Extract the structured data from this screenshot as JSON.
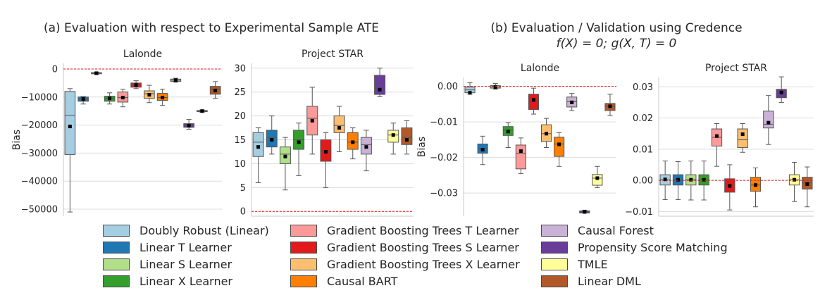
{
  "titles": {
    "left": "(a) Evaluation with respect to Experimental Sample ATE",
    "right": "(b) Evaluation / Validation using Credence",
    "right_sub": "f(X) = 0; g(X, T) = 0"
  },
  "legend": [
    {
      "label": "Doubly Robust (Linear)",
      "color": "#a6cee3"
    },
    {
      "label": "Linear T Learner",
      "color": "#1f78b4"
    },
    {
      "label": "Linear S Learner",
      "color": "#b2df8a"
    },
    {
      "label": "Linear X Learner",
      "color": "#33a02c"
    },
    {
      "label": "Gradient Boosting Trees T Learner",
      "color": "#fb9a99"
    },
    {
      "label": "Gradient Boosting Trees S Learner",
      "color": "#e31a1c"
    },
    {
      "label": "Gradient Boosting Trees X Learner",
      "color": "#fdbf6f"
    },
    {
      "label": "Causal BART",
      "color": "#ff7f00"
    },
    {
      "label": "Causal Forest",
      "color": "#cab2d6"
    },
    {
      "label": "Propensity Score Matching",
      "color": "#6a3d9a"
    },
    {
      "label": "TMLE",
      "color": "#ffff99"
    },
    {
      "label": "Linear DML",
      "color": "#b15928"
    }
  ],
  "chart_data": [
    {
      "type": "box",
      "title": "Lalonde",
      "ylabel": "Bias",
      "ylim": [
        -52500,
        2000
      ],
      "yticks": [
        0,
        -10000,
        -20000,
        -30000,
        -40000,
        -50000
      ],
      "ytick_labels": [
        "0",
        "−10000",
        "−20000",
        "−30000",
        "−40000",
        "−50000"
      ],
      "reference_line": 0,
      "boxes": [
        {
          "whislo": -51000,
          "q1": -30500,
          "med": -16500,
          "q3": -8000,
          "whishi": -7000,
          "mean": -20500
        },
        {
          "whislo": -12500,
          "q1": -11500,
          "med": -10800,
          "q3": -10000,
          "whishi": -9800,
          "mean": -10700
        },
        {
          "whislo": -1900,
          "q1": -1700,
          "med": -1500,
          "q3": -1300,
          "whishi": -1100,
          "mean": -1500
        },
        {
          "whislo": -12500,
          "q1": -11500,
          "med": -10500,
          "q3": -9700,
          "whishi": -8500,
          "mean": -10500
        },
        {
          "whislo": -13500,
          "q1": -11800,
          "med": -10200,
          "q3": -8200,
          "whishi": -7200,
          "mean": -10200
        },
        {
          "whislo": -7000,
          "q1": -6500,
          "med": -5800,
          "q3": -5000,
          "whishi": -4200,
          "mean": -5700
        },
        {
          "whislo": -12000,
          "q1": -10500,
          "med": -8800,
          "q3": -7800,
          "whishi": -5800,
          "mean": -9200
        },
        {
          "whislo": -13000,
          "q1": -11200,
          "med": -10200,
          "q3": -8700,
          "whishi": -7200,
          "mean": -10200
        },
        {
          "whislo": -4700,
          "q1": -4400,
          "med": -4000,
          "q3": -3600,
          "whishi": -3300,
          "mean": -4000
        },
        {
          "whislo": -21500,
          "q1": -20800,
          "med": -20200,
          "q3": -19500,
          "whishi": -18000,
          "mean": -20200
        },
        {
          "whislo": -15400,
          "q1": -15200,
          "med": -15000,
          "q3": -14800,
          "whishi": -14600,
          "mean": -15000
        },
        {
          "whislo": -10500,
          "q1": -9000,
          "med": -7200,
          "q3": -6200,
          "whishi": -4500,
          "mean": -7700
        }
      ]
    },
    {
      "type": "box",
      "title": "Project STAR",
      "ylabel": "",
      "ylim": [
        -1,
        31
      ],
      "yticks": [
        0,
        5,
        10,
        15,
        20,
        25,
        30
      ],
      "ytick_labels": [
        "0",
        "5",
        "10",
        "15",
        "20",
        "25",
        "30"
      ],
      "reference_line": 0,
      "boxes": [
        {
          "whislo": 6,
          "q1": 11.5,
          "med": 14.5,
          "q3": 16.5,
          "whishi": 17.5,
          "mean": 13.5
        },
        {
          "whislo": 12,
          "q1": 13.5,
          "med": 15.5,
          "q3": 17,
          "whishi": 20,
          "mean": 15
        },
        {
          "whislo": 4.5,
          "q1": 10,
          "med": 12,
          "q3": 13.5,
          "whishi": 15.5,
          "mean": 11.5
        },
        {
          "whislo": 7.5,
          "q1": 13,
          "med": 15,
          "q3": 17,
          "whishi": 18.5,
          "mean": 14.5
        },
        {
          "whislo": 12,
          "q1": 16,
          "med": 19.5,
          "q3": 22,
          "whishi": 26,
          "mean": 19
        },
        {
          "whislo": 5,
          "q1": 10.5,
          "med": 12.5,
          "q3": 15,
          "whishi": 16.5,
          "mean": 12.5
        },
        {
          "whislo": 12.5,
          "q1": 16.5,
          "med": 18,
          "q3": 20,
          "whishi": 22,
          "mean": 17.5
        },
        {
          "whislo": 11,
          "q1": 13,
          "med": 14.5,
          "q3": 16.5,
          "whishi": 17.5,
          "mean": 14.5
        },
        {
          "whislo": 8.5,
          "q1": 12,
          "med": 14,
          "q3": 15.5,
          "whishi": 17,
          "mean": 13.5
        },
        {
          "whislo": 24,
          "q1": 24.5,
          "med": 26.5,
          "q3": 28.5,
          "whishi": 30,
          "mean": 25.5
        },
        {
          "whislo": 12,
          "q1": 14.5,
          "med": 16,
          "q3": 17,
          "whishi": 18.5,
          "mean": 16
        },
        {
          "whislo": 12,
          "q1": 14,
          "med": 15.5,
          "q3": 17.5,
          "whishi": 19,
          "mean": 15
        }
      ]
    },
    {
      "type": "box",
      "title": "Lalonde",
      "ylabel": "Bias",
      "ylim": [
        -0.0365,
        0.0025
      ],
      "yticks": [
        0,
        -0.01,
        -0.02,
        -0.03
      ],
      "ytick_labels": [
        "0.00",
        "−0.01",
        "−0.02",
        "−0.03"
      ],
      "reference_line": 0,
      "boxes": [
        {
          "whislo": -0.0022,
          "q1": -0.0018,
          "med": -0.001,
          "q3": -0.0002,
          "whishi": 0.001,
          "mean": -0.0018
        },
        {
          "whislo": -0.022,
          "q1": -0.0188,
          "med": -0.0175,
          "q3": -0.0162,
          "whishi": -0.014,
          "mean": -0.0178
        },
        {
          "whislo": -0.0008,
          "q1": -0.0005,
          "med": -0.0002,
          "q3": 0.0002,
          "whishi": 0.0008,
          "mean": -0.0002
        },
        {
          "whislo": -0.0172,
          "q1": -0.0138,
          "med": -0.0123,
          "q3": -0.0113,
          "whishi": -0.0102,
          "mean": -0.0127
        },
        {
          "whislo": -0.0245,
          "q1": -0.0232,
          "med": -0.0188,
          "q3": -0.0165,
          "whishi": -0.0145,
          "mean": -0.0182
        },
        {
          "whislo": -0.0078,
          "q1": -0.0065,
          "med": -0.0042,
          "q3": -0.0022,
          "whishi": -0.0005,
          "mean": -0.0038
        },
        {
          "whislo": -0.0172,
          "q1": -0.0155,
          "med": -0.0133,
          "q3": -0.0108,
          "whishi": -0.009,
          "mean": -0.0133
        },
        {
          "whislo": -0.0225,
          "q1": -0.0197,
          "med": -0.0162,
          "q3": -0.0143,
          "whishi": -0.013,
          "mean": -0.0163
        },
        {
          "whislo": -0.0068,
          "q1": -0.0058,
          "med": -0.0043,
          "q3": -0.003,
          "whishi": -0.002,
          "mean": -0.0045
        },
        {
          "whislo": -0.0356,
          "q1": -0.0356,
          "med": -0.0353,
          "q3": -0.035,
          "whishi": -0.0348,
          "mean": -0.0353
        },
        {
          "whislo": -0.0285,
          "q1": -0.0278,
          "med": -0.0258,
          "q3": -0.0248,
          "whishi": -0.0225,
          "mean": -0.0258
        },
        {
          "whislo": -0.0082,
          "q1": -0.0068,
          "med": -0.0056,
          "q3": -0.0048,
          "whishi": -0.0022,
          "mean": -0.0056
        }
      ]
    },
    {
      "type": "box",
      "title": "Project STAR",
      "ylabel": "",
      "ylim": [
        -0.0115,
        0.033
      ],
      "yticks": [
        -0.01,
        0,
        0.01,
        0.02,
        0.03
      ],
      "ytick_labels": [
        "−0.01",
        "0.00",
        "0.01",
        "0.02",
        "0.03"
      ],
      "reference_line": 0,
      "boxes": [
        {
          "whislo": -0.0062,
          "q1": -0.0015,
          "med": 0.0002,
          "q3": 0.0018,
          "whishi": 0.0062,
          "mean": 0.0003
        },
        {
          "whislo": -0.0062,
          "q1": -0.0015,
          "med": 0.0002,
          "q3": 0.0018,
          "whishi": 0.006,
          "mean": 0.0002
        },
        {
          "whislo": -0.0063,
          "q1": -0.0015,
          "med": 0.0002,
          "q3": 0.0018,
          "whishi": 0.0062,
          "mean": 0.0002
        },
        {
          "whislo": -0.0063,
          "q1": -0.0015,
          "med": 0.0002,
          "q3": 0.0018,
          "whishi": 0.0062,
          "mean": 0.0002
        },
        {
          "whislo": 0.0045,
          "q1": 0.011,
          "med": 0.0138,
          "q3": 0.0165,
          "whishi": 0.0182,
          "mean": 0.0142
        },
        {
          "whislo": -0.0095,
          "q1": -0.0038,
          "med": -0.0015,
          "q3": 0.0005,
          "whishi": 0.005,
          "mean": -0.0018
        },
        {
          "whislo": 0.009,
          "q1": 0.0105,
          "med": 0.013,
          "q3": 0.0165,
          "whishi": 0.0182,
          "mean": 0.0148
        },
        {
          "whislo": -0.0085,
          "q1": -0.0035,
          "med": -0.0015,
          "q3": 0.001,
          "whishi": 0.004,
          "mean": -0.0015
        },
        {
          "whislo": 0.0115,
          "q1": 0.0168,
          "med": 0.018,
          "q3": 0.0222,
          "whishi": 0.0272,
          "mean": 0.0185
        },
        {
          "whislo": 0.025,
          "q1": 0.0265,
          "med": 0.0282,
          "q3": 0.0292,
          "whishi": 0.0332,
          "mean": 0.0282
        },
        {
          "whislo": -0.0068,
          "q1": -0.0015,
          "med": 0.0002,
          "q3": 0.0018,
          "whishi": 0.0058,
          "mean": 0.0002
        },
        {
          "whislo": -0.0085,
          "q1": -0.0028,
          "med": -0.0008,
          "q3": 0.001,
          "whishi": 0.0043,
          "mean": -0.0012
        }
      ]
    }
  ]
}
